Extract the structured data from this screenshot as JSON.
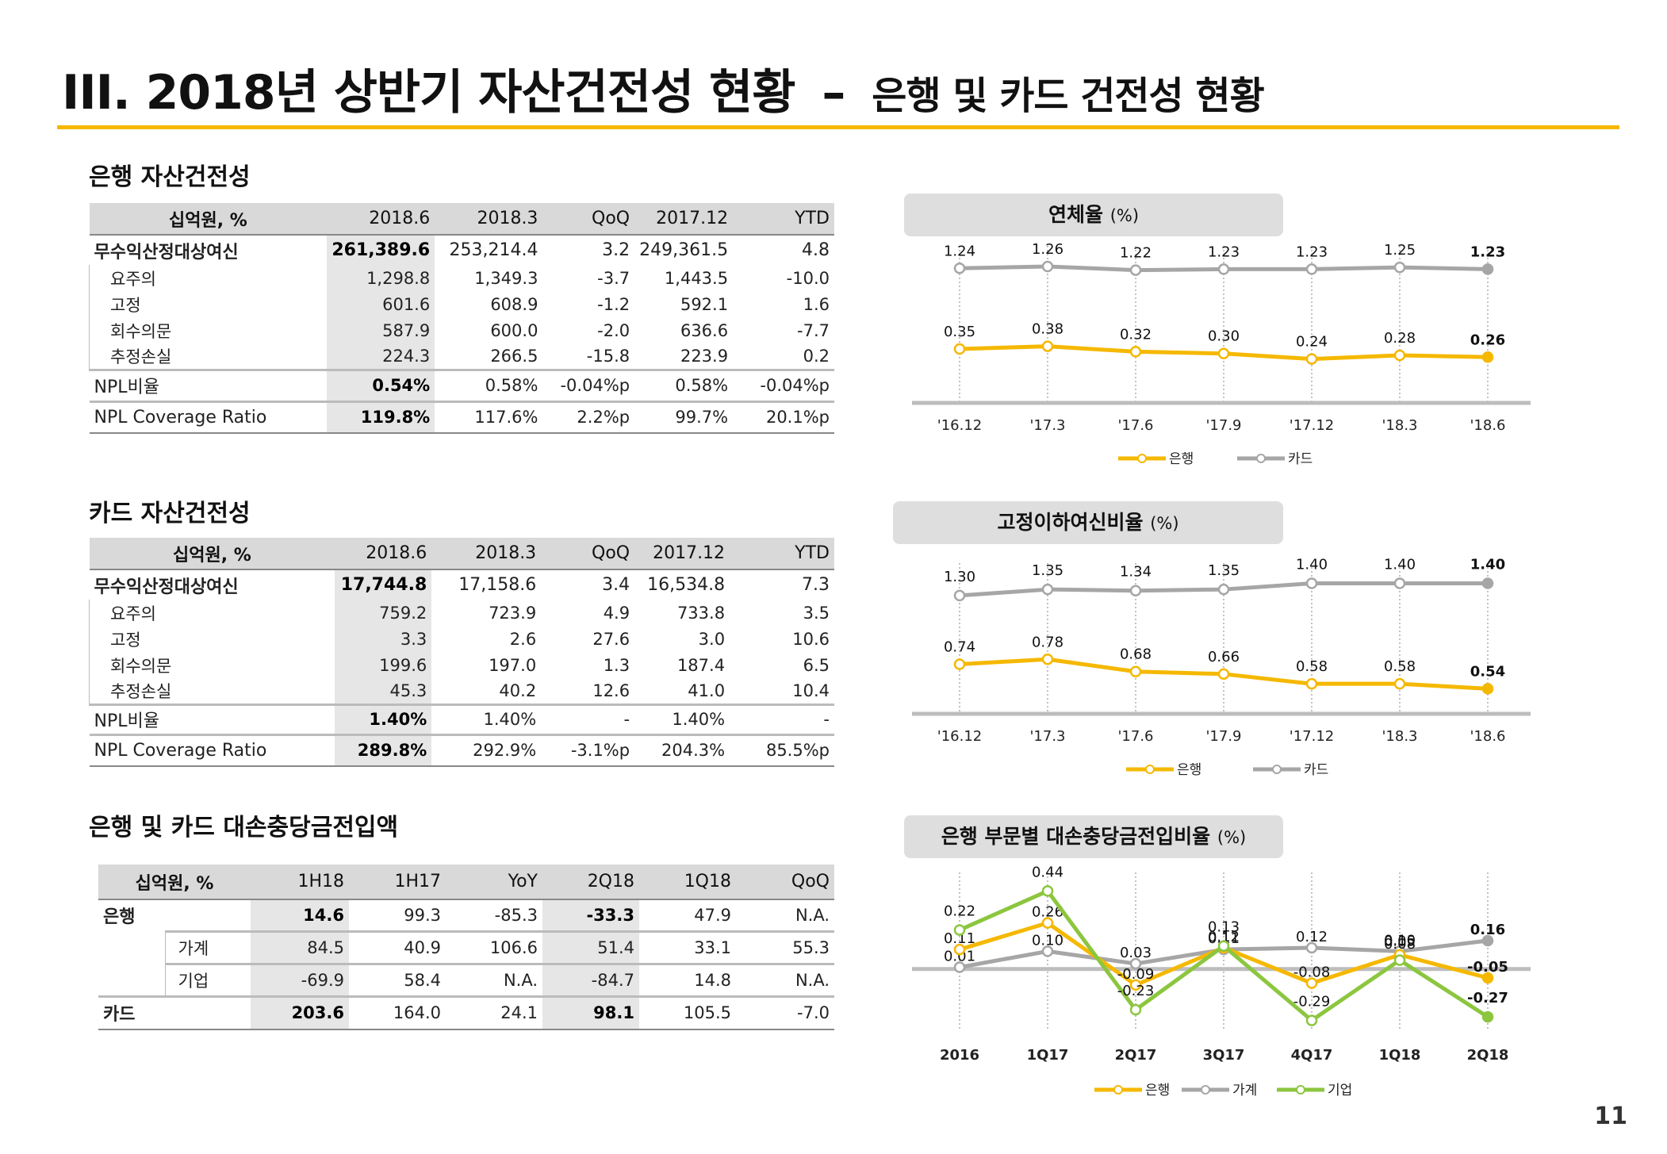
{
  "title": {
    "main": "III. 2018년 상반기 자산건전성 현황",
    "dash": "–",
    "sub": "은행 및 카드 건전성 현황"
  },
  "colors": {
    "accent": "#f5b800",
    "bank": "#f5b800",
    "card": "#a6a6a6",
    "household": "#a6a6a6",
    "corporate": "#8cc63f"
  },
  "bank_section": {
    "title": "은행 자산건전성",
    "headers": [
      "십억원, %",
      "2018.6",
      "2018.3",
      "QoQ",
      "2017.12",
      "YTD"
    ],
    "main_row": {
      "label": "무수익산정대상여신",
      "values": [
        "261,389.6",
        "253,214.4",
        "3.2",
        "249,361.5",
        "4.8"
      ]
    },
    "sub_rows": [
      {
        "label": "요주의",
        "values": [
          "1,298.8",
          "1,349.3",
          "-3.7",
          "1,443.5",
          "-10.0"
        ]
      },
      {
        "label": "고정",
        "values": [
          "601.6",
          "608.9",
          "-1.2",
          "592.1",
          "1.6"
        ]
      },
      {
        "label": "회수의문",
        "values": [
          "587.9",
          "600.0",
          "-2.0",
          "636.6",
          "-7.7"
        ]
      },
      {
        "label": "추정손실",
        "values": [
          "224.3",
          "266.5",
          "-15.8",
          "223.9",
          "0.2"
        ]
      }
    ],
    "npl_row": {
      "label": "NPL비율",
      "values": [
        "0.54%",
        "0.58%",
        "-0.04%p",
        "0.58%",
        "-0.04%p"
      ]
    },
    "coverage_row": {
      "label": "NPL Coverage Ratio",
      "values": [
        "119.8%",
        "117.6%",
        "2.2%p",
        "99.7%",
        "20.1%p"
      ]
    }
  },
  "card_section": {
    "title": "카드 자산건전성",
    "headers": [
      "십억원, %",
      "2018.6",
      "2018.3",
      "QoQ",
      "2017.12",
      "YTD"
    ],
    "main_row": {
      "label": "무수익산정대상여신",
      "values": [
        "17,744.8",
        "17,158.6",
        "3.4",
        "16,534.8",
        "7.3"
      ]
    },
    "sub_rows": [
      {
        "label": "요주의",
        "values": [
          "759.2",
          "723.9",
          "4.9",
          "733.8",
          "3.5"
        ]
      },
      {
        "label": "고정",
        "values": [
          "3.3",
          "2.6",
          "27.6",
          "3.0",
          "10.6"
        ]
      },
      {
        "label": "회수의문",
        "values": [
          "199.6",
          "197.0",
          "1.3",
          "187.4",
          "6.5"
        ]
      },
      {
        "label": "추정손실",
        "values": [
          "45.3",
          "40.2",
          "12.6",
          "41.0",
          "10.4"
        ]
      }
    ],
    "npl_row": {
      "label": "NPL비율",
      "values": [
        "1.40%",
        "1.40%",
        "-",
        "1.40%",
        "-"
      ]
    },
    "coverage_row": {
      "label": "NPL Coverage Ratio",
      "values": [
        "289.8%",
        "292.9%",
        "-3.1%p",
        "204.3%",
        "85.5%p"
      ]
    }
  },
  "provision_section": {
    "title": "은행 및 카드 대손충당금전입액",
    "headers": [
      "십억원, %",
      "1H18",
      "1H17",
      "YoY",
      "2Q18",
      "1Q18",
      "QoQ"
    ],
    "bank_row": {
      "label": "은행",
      "values": [
        "14.6",
        "99.3",
        "-85.3",
        "-33.3",
        "47.9",
        "N.A."
      ]
    },
    "sub_rows": [
      {
        "label": "가계",
        "values": [
          "84.5",
          "40.9",
          "106.6",
          "51.4",
          "33.1",
          "55.3"
        ]
      },
      {
        "label": "기업",
        "values": [
          "-69.9",
          "58.4",
          "N.A.",
          "-84.7",
          "14.8",
          "N.A."
        ]
      }
    ],
    "card_row": {
      "label": "카드",
      "values": [
        "203.6",
        "164.0",
        "24.1",
        "98.1",
        "105.5",
        "-7.0"
      ]
    }
  },
  "chart_data": [
    {
      "type": "line",
      "title": "연체율",
      "unit": "(%)",
      "categories": [
        "'16.12",
        "'17.3",
        "'17.6",
        "'17.9",
        "'17.12",
        "'18.3",
        "'18.6"
      ],
      "series": [
        {
          "name": "은행",
          "values": [
            0.35,
            0.38,
            0.32,
            0.3,
            0.24,
            0.28,
            0.26
          ],
          "labels": [
            "0.35",
            "0.38",
            "0.32",
            "0.30",
            "0.24",
            "0.28",
            "0.26"
          ]
        },
        {
          "name": "카드",
          "values": [
            1.24,
            1.26,
            1.22,
            1.23,
            1.23,
            1.25,
            1.23
          ],
          "labels": [
            "1.24",
            "1.26",
            "1.22",
            "1.23",
            "1.23",
            "1.25",
            "1.23"
          ]
        }
      ],
      "legend": "bottom"
    },
    {
      "type": "line",
      "title": "고정이하여신비율",
      "unit": "(%)",
      "categories": [
        "'16.12",
        "'17.3",
        "'17.6",
        "'17.9",
        "'17.12",
        "'18.3",
        "'18.6"
      ],
      "series": [
        {
          "name": "은행",
          "values": [
            0.74,
            0.78,
            0.68,
            0.66,
            0.58,
            0.58,
            0.54
          ],
          "labels": [
            "0.74",
            "0.78",
            "0.68",
            "0.66",
            "0.58",
            "0.58",
            "0.54"
          ]
        },
        {
          "name": "카드",
          "values": [
            1.3,
            1.35,
            1.34,
            1.35,
            1.4,
            1.4,
            1.4
          ],
          "labels": [
            "1.30",
            "1.35",
            "1.34",
            "1.35",
            "1.40",
            "1.40",
            "1.40"
          ]
        }
      ],
      "legend": "bottom"
    },
    {
      "type": "line",
      "title": "은행 부문별 대손충당금전입비율",
      "unit": "(%)",
      "categories": [
        "2016",
        "1Q17",
        "2Q17",
        "3Q17",
        "4Q17",
        "1Q18",
        "2Q18"
      ],
      "series": [
        {
          "name": "은행",
          "values": [
            0.11,
            0.26,
            -0.09,
            0.12,
            -0.08,
            0.08,
            -0.05
          ],
          "labels": [
            "0.11",
            "0.26",
            "-0.09",
            "0.12",
            "-0.08",
            "0.08",
            "-0.05"
          ]
        },
        {
          "name": "가계",
          "values": [
            0.01,
            0.1,
            0.03,
            0.11,
            0.12,
            0.1,
            0.16
          ],
          "labels": [
            "0.01",
            "0.10",
            "0.03",
            "0.11",
            "0.12",
            "0.10",
            "0.16"
          ]
        },
        {
          "name": "기업",
          "values": [
            0.22,
            0.44,
            -0.23,
            0.13,
            -0.29,
            0.05,
            -0.27
          ],
          "labels": [
            "0.22",
            "0.44",
            "-0.23",
            "0.13",
            "-0.29",
            "0.05",
            "-0.27"
          ]
        }
      ],
      "legend": "bottom"
    }
  ],
  "page_number": "11"
}
